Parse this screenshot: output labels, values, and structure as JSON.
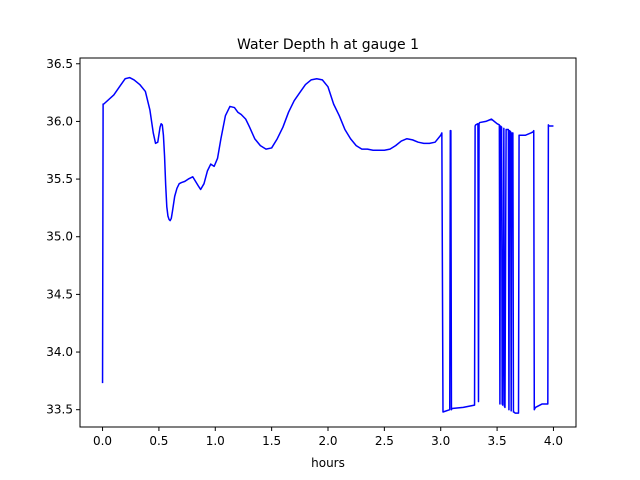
{
  "chart_data": {
    "type": "line",
    "title": "Water Depth h at gauge 1",
    "xlabel": "hours",
    "ylabel": "",
    "xlim": [
      -0.2,
      4.2
    ],
    "ylim": [
      33.35,
      36.55
    ],
    "x_ticks": [
      0.0,
      0.5,
      1.0,
      1.5,
      2.0,
      2.5,
      3.0,
      3.5,
      4.0
    ],
    "x_tick_labels": [
      "0.0",
      "0.5",
      "1.0",
      "1.5",
      "2.0",
      "2.5",
      "3.0",
      "3.5",
      "4.0"
    ],
    "y_ticks": [
      33.5,
      34.0,
      34.5,
      35.0,
      35.5,
      36.0,
      36.5
    ],
    "y_tick_labels": [
      "33.5",
      "34.0",
      "34.5",
      "35.0",
      "35.5",
      "36.0",
      "36.5"
    ],
    "grid": false,
    "series": [
      {
        "color": "#0000ff",
        "x": [
          0.0,
          0.005,
          0.01,
          0.1,
          0.15,
          0.2,
          0.24,
          0.28,
          0.33,
          0.38,
          0.42,
          0.45,
          0.47,
          0.49,
          0.51,
          0.52,
          0.53,
          0.54,
          0.55,
          0.56,
          0.57,
          0.58,
          0.59,
          0.6,
          0.61,
          0.62,
          0.64,
          0.66,
          0.68,
          0.7,
          0.73,
          0.76,
          0.8,
          0.85,
          0.87,
          0.9,
          0.93,
          0.96,
          0.99,
          1.02,
          1.05,
          1.09,
          1.13,
          1.17,
          1.2,
          1.23,
          1.27,
          1.3,
          1.35,
          1.4,
          1.45,
          1.5,
          1.55,
          1.6,
          1.65,
          1.7,
          1.75,
          1.8,
          1.85,
          1.9,
          1.95,
          2.0,
          2.05,
          2.1,
          2.15,
          2.2,
          2.25,
          2.3,
          2.35,
          2.4,
          2.45,
          2.5,
          2.55,
          2.6,
          2.65,
          2.7,
          2.75,
          2.8,
          2.85,
          2.9,
          2.95,
          3.0,
          3.01,
          3.02,
          3.08,
          3.085,
          3.09,
          3.095,
          3.1,
          3.2,
          3.3,
          3.305,
          3.31,
          3.33,
          3.335,
          3.34,
          3.345,
          3.4,
          3.45,
          3.5,
          3.52,
          3.525,
          3.53,
          3.54,
          3.545,
          3.55,
          3.56,
          3.565,
          3.57,
          3.58,
          3.6,
          3.605,
          3.61,
          3.62,
          3.625,
          3.63,
          3.64,
          3.645,
          3.65,
          3.66,
          3.67,
          3.68,
          3.69,
          3.695,
          3.7,
          3.75,
          3.8,
          3.82,
          3.825,
          3.83,
          3.835,
          3.84,
          3.9,
          3.95,
          3.955,
          3.96,
          3.98,
          4.0
        ],
        "y": [
          33.73,
          36.15,
          36.15,
          36.23,
          36.3,
          36.37,
          36.38,
          36.36,
          36.32,
          36.26,
          36.1,
          35.9,
          35.81,
          35.82,
          35.95,
          35.98,
          35.97,
          35.88,
          35.7,
          35.45,
          35.26,
          35.18,
          35.15,
          35.14,
          35.16,
          35.22,
          35.35,
          35.42,
          35.46,
          35.47,
          35.48,
          35.5,
          35.52,
          35.44,
          35.41,
          35.46,
          35.57,
          35.63,
          35.61,
          35.68,
          35.85,
          36.05,
          36.13,
          36.12,
          36.08,
          36.06,
          36.02,
          35.96,
          35.85,
          35.79,
          35.76,
          35.77,
          35.85,
          35.95,
          36.08,
          36.18,
          36.25,
          36.32,
          36.36,
          36.37,
          36.36,
          36.3,
          36.15,
          36.05,
          35.93,
          35.85,
          35.79,
          35.76,
          35.76,
          35.75,
          35.75,
          35.75,
          35.76,
          35.79,
          35.83,
          35.85,
          35.84,
          35.82,
          35.81,
          35.81,
          35.82,
          35.88,
          35.9,
          33.48,
          33.5,
          35.92,
          35.92,
          33.5,
          33.51,
          33.52,
          33.54,
          35.96,
          35.97,
          35.98,
          33.57,
          35.98,
          35.99,
          36.0,
          36.02,
          35.98,
          35.97,
          33.55,
          35.96,
          35.95,
          33.55,
          33.54,
          35.94,
          33.53,
          33.52,
          35.93,
          35.93,
          33.5,
          35.92,
          35.91,
          33.49,
          35.9,
          35.9,
          33.48,
          33.48,
          33.47,
          33.47,
          33.47,
          33.47,
          35.88,
          35.88,
          35.88,
          35.9,
          35.91,
          35.92,
          33.5,
          33.51,
          33.52,
          33.55,
          33.55,
          35.97,
          35.96,
          35.96,
          35.96
        ]
      }
    ]
  }
}
